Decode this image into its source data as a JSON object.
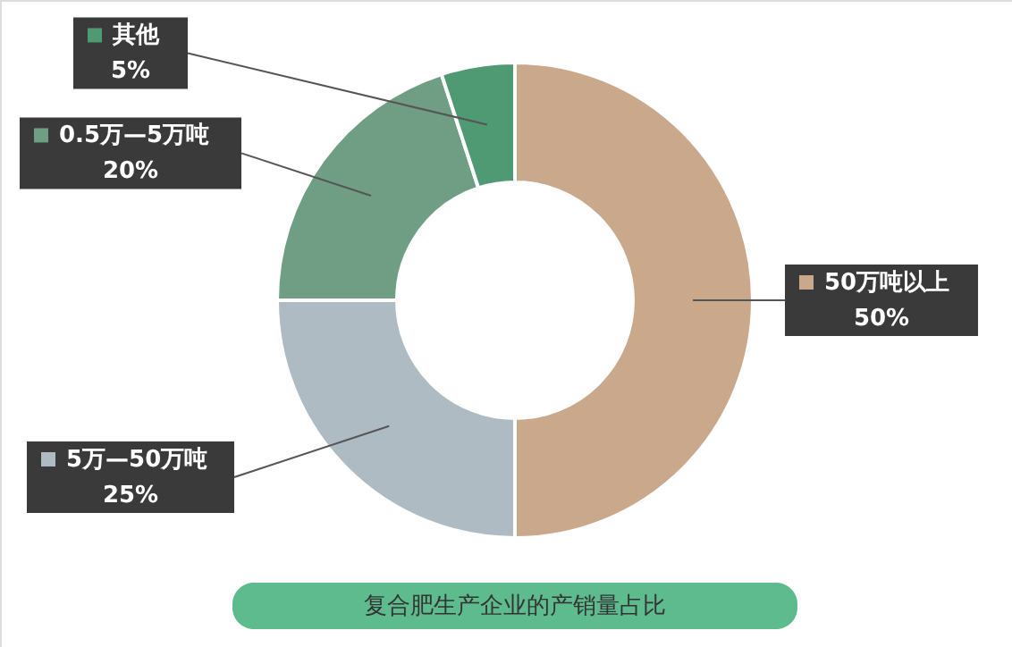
{
  "chart_data": {
    "type": "donut",
    "title": "复合肥生产企业的产销量占比",
    "categories": [
      "50万吨以上",
      "5万—50万吨",
      "0.5万—5万吨",
      "其他"
    ],
    "values": [
      50,
      25,
      20,
      5
    ],
    "value_labels": [
      "50%",
      "25%",
      "20%",
      "5%"
    ],
    "colors": [
      "#c9a88c",
      "#aebbc2",
      "#6f9e84",
      "#4f9a72"
    ],
    "legend": "left"
  }
}
